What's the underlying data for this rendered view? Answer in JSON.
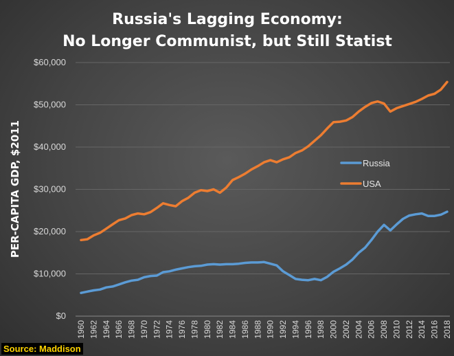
{
  "chart_data": {
    "type": "line",
    "title": [
      "Russia's Lagging Economy:",
      "No Longer Communist, but Still Statist"
    ],
    "ylabel": "PER-CAPITA GDP, $2011",
    "xlabel": "",
    "ylim": [
      0,
      60000
    ],
    "yticks": [
      0,
      10000,
      20000,
      30000,
      40000,
      50000,
      60000
    ],
    "ytick_labels": [
      "$0",
      "$10,000",
      "$20,000",
      "$30,000",
      "$40,000",
      "$50,000",
      "$60,000"
    ],
    "xlim": [
      1960,
      2018
    ],
    "xticks": [
      1960,
      1962,
      1964,
      1966,
      1968,
      1970,
      1972,
      1974,
      1976,
      1978,
      1980,
      1982,
      1984,
      1986,
      1988,
      1990,
      1992,
      1994,
      1996,
      1998,
      2000,
      2002,
      2004,
      2006,
      2008,
      2010,
      2012,
      2014,
      2016,
      2018
    ],
    "grid": true,
    "legend": "center-right",
    "x": [
      1960,
      1961,
      1962,
      1963,
      1964,
      1965,
      1966,
      1967,
      1968,
      1969,
      1970,
      1971,
      1972,
      1973,
      1974,
      1975,
      1976,
      1977,
      1978,
      1979,
      1980,
      1981,
      1982,
      1983,
      1984,
      1985,
      1986,
      1987,
      1988,
      1989,
      1990,
      1991,
      1992,
      1993,
      1994,
      1995,
      1996,
      1997,
      1998,
      1999,
      2000,
      2001,
      2002,
      2003,
      2004,
      2005,
      2006,
      2007,
      2008,
      2009,
      2010,
      2011,
      2012,
      2013,
      2014,
      2015,
      2016,
      2017,
      2018
    ],
    "series": [
      {
        "name": "Russia",
        "color": "#5b9bd5",
        "values": [
          5500,
          5800,
          6100,
          6300,
          6800,
          7000,
          7500,
          8000,
          8400,
          8600,
          9200,
          9500,
          9600,
          10400,
          10600,
          11000,
          11300,
          11600,
          11800,
          11900,
          12200,
          12300,
          12200,
          12300,
          12300,
          12400,
          12600,
          12700,
          12700,
          12800,
          12400,
          12000,
          10600,
          9700,
          8800,
          8600,
          8500,
          8800,
          8500,
          9300,
          10500,
          11300,
          12200,
          13400,
          15000,
          16200,
          18000,
          20000,
          21600,
          20300,
          21700,
          23000,
          23800,
          24100,
          24300,
          23700,
          23700,
          24000,
          24700
        ]
      },
      {
        "name": "USA",
        "color": "#ed7d31",
        "values": [
          18000,
          18200,
          19100,
          19700,
          20700,
          21700,
          22700,
          23100,
          23900,
          24300,
          24100,
          24600,
          25600,
          26700,
          26300,
          26000,
          27200,
          28000,
          29200,
          29800,
          29600,
          30000,
          29200,
          30400,
          32200,
          32900,
          33700,
          34700,
          35500,
          36400,
          36900,
          36400,
          37100,
          37600,
          38600,
          39200,
          40200,
          41500,
          42800,
          44400,
          45900,
          46000,
          46300,
          47100,
          48400,
          49500,
          50400,
          50800,
          50300,
          48400,
          49200,
          49700,
          50200,
          50700,
          51400,
          52200,
          52600,
          53600,
          55400
        ]
      }
    ]
  },
  "source": "Source: Maddison"
}
